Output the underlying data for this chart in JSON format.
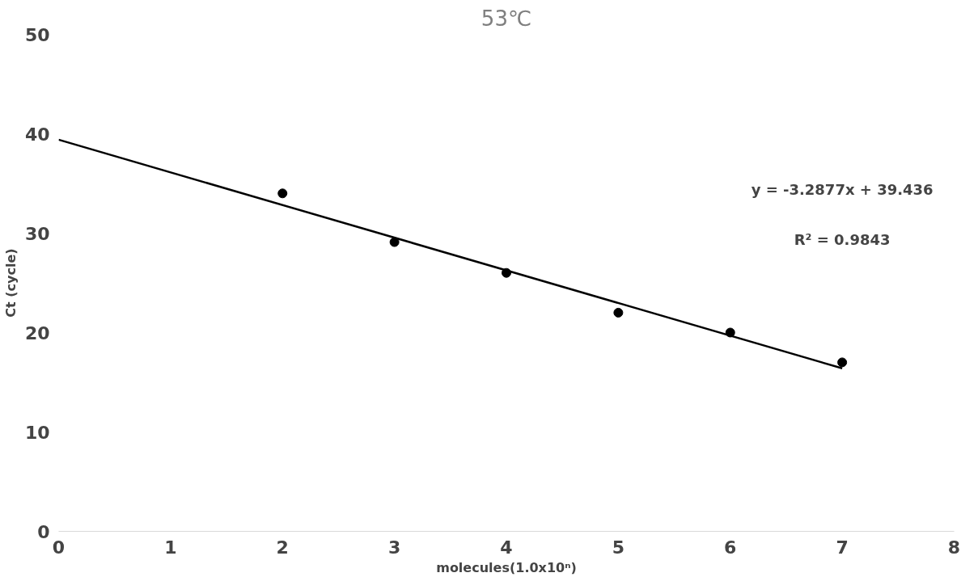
{
  "chart_data": {
    "type": "scatter",
    "title": "53℃",
    "xlabel": "molecules(1.0x10ⁿ)",
    "ylabel": "Ct (cycle)",
    "xlim": [
      0,
      8
    ],
    "xticks": [
      0,
      1,
      2,
      3,
      4,
      5,
      6,
      7,
      8
    ],
    "ylim": [
      0,
      50
    ],
    "yticks": [
      0,
      10,
      20,
      30,
      40,
      50
    ],
    "grid": false,
    "series": [
      {
        "color": "#000000",
        "marker": "circle",
        "x": [
          2,
          3,
          4,
          5,
          6,
          7
        ],
        "values": [
          34.0,
          29.1,
          26.0,
          22.0,
          20.0,
          17.0
        ]
      },
      {
        "type": "line",
        "color": "#000000",
        "x": [
          0,
          7
        ],
        "values": [
          39.4,
          16.4
        ],
        "line_style": "solid"
      }
    ],
    "annotations": [
      "y = -3.2877x + 39.436",
      "R² = 0.9843"
    ]
  }
}
